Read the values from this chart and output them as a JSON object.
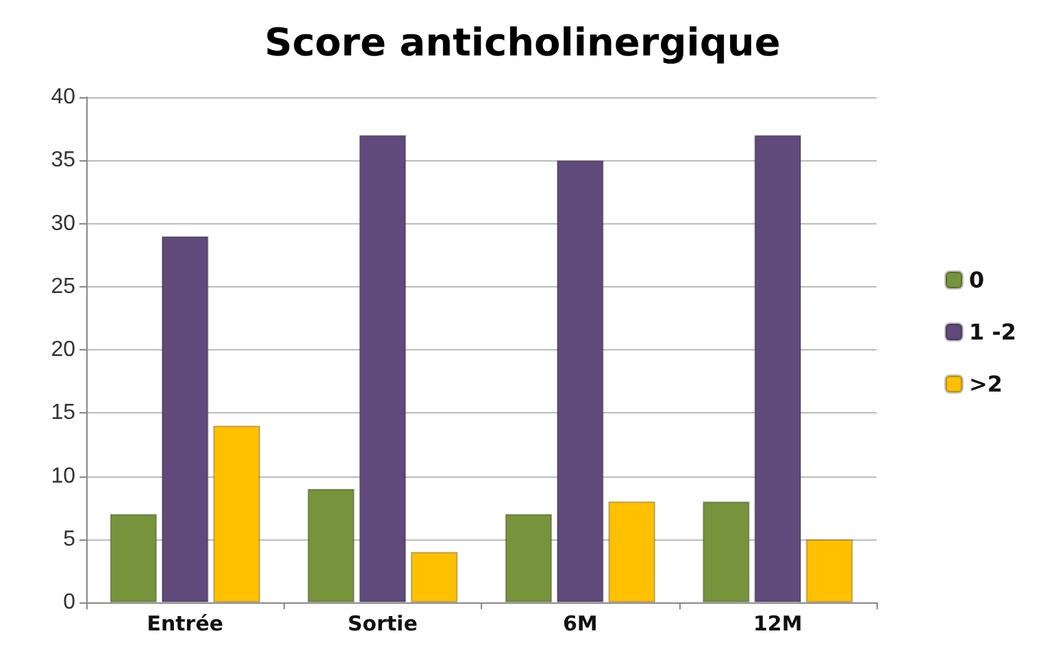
{
  "chart_data": {
    "type": "bar",
    "title": "Score anticholinergique",
    "categories": [
      "Entrée",
      "Sortie",
      "6M",
      "12M"
    ],
    "series": [
      {
        "name": "0",
        "color": "#77933c",
        "values": [
          7,
          9,
          7,
          8
        ]
      },
      {
        "name": "1 -2",
        "color": "#604a7b",
        "values": [
          29,
          37,
          35,
          37
        ]
      },
      {
        "name": ">2",
        "color": "#ffc000",
        "values": [
          14,
          4,
          8,
          5
        ]
      }
    ],
    "ylim": [
      0,
      40
    ],
    "yticks": [
      0,
      5,
      10,
      15,
      20,
      25,
      30,
      35,
      40
    ],
    "grid": "y",
    "legend": "right"
  }
}
